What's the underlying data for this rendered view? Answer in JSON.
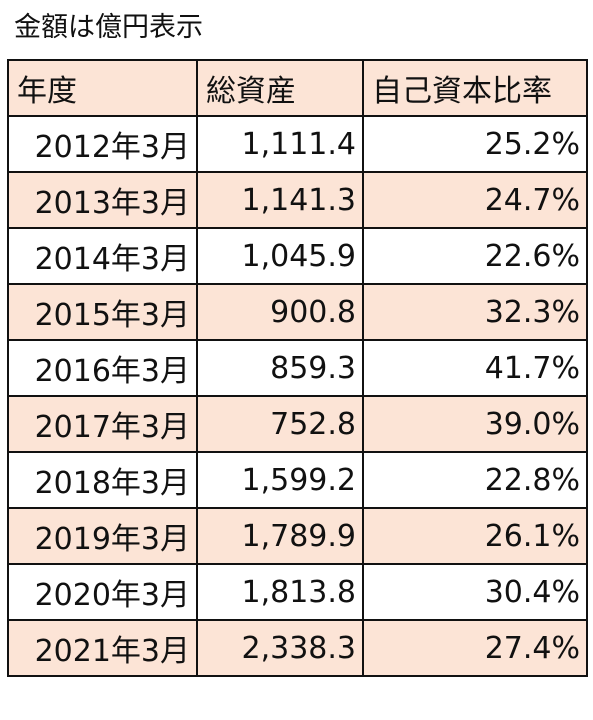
{
  "caption": "金額は億円表示",
  "colors": {
    "header_fill": "#fce4d6",
    "band_fill": "#fce4d6",
    "plain_fill": "#ffffff",
    "border": "#111111"
  },
  "table": {
    "headers": [
      "年度",
      "総資産",
      "自己資本比率"
    ],
    "rows": [
      [
        "2012年3月",
        "1,111.4",
        "25.2%"
      ],
      [
        "2013年3月",
        "1,141.3",
        "24.7%"
      ],
      [
        "2014年3月",
        "1,045.9",
        "22.6%"
      ],
      [
        "2015年3月",
        "900.8",
        "32.3%"
      ],
      [
        "2016年3月",
        "859.3",
        "41.7%"
      ],
      [
        "2017年3月",
        "752.8",
        "39.0%"
      ],
      [
        "2018年3月",
        "1,599.2",
        "22.8%"
      ],
      [
        "2019年3月",
        "1,789.9",
        "26.1%"
      ],
      [
        "2020年3月",
        "1,813.8",
        "30.4%"
      ],
      [
        "2021年3月",
        "2,338.3",
        "27.4%"
      ]
    ]
  }
}
